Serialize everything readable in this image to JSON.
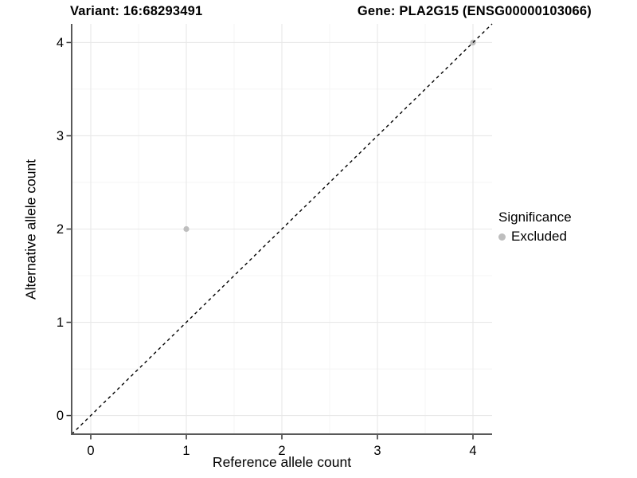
{
  "chart_data": {
    "type": "scatter",
    "title_left": "Variant: 16:68293491",
    "title_right": "Gene: PLA2G15 (ENSG00000103066)",
    "xlabel": "Reference allele count",
    "ylabel": "Alternative allele count",
    "xlim": [
      -0.2,
      4.2
    ],
    "ylim": [
      -0.2,
      4.2
    ],
    "xticks": [
      0,
      1,
      2,
      3,
      4
    ],
    "yticks": [
      0,
      1,
      2,
      3,
      4
    ],
    "minor_grid_step": 0.5,
    "grid": true,
    "aspect": "equal",
    "reference_line": {
      "type": "identity",
      "style": "dashed",
      "color": "#000000"
    },
    "series": [
      {
        "name": "Excluded",
        "marker": "circle",
        "color": "#bebebe",
        "points": [
          [
            1,
            2
          ],
          [
            4,
            4
          ]
        ]
      }
    ],
    "legend": {
      "title": "Significance",
      "position": "right",
      "entries": [
        {
          "label": "Excluded",
          "color": "#bebebe"
        }
      ]
    },
    "colors": {
      "background": "#ffffff",
      "axis_line": "#595959",
      "tick": "#333333",
      "tick_label": "#000000",
      "major_grid": "#e8e8e8",
      "minor_grid": "#f4f4f4"
    }
  }
}
